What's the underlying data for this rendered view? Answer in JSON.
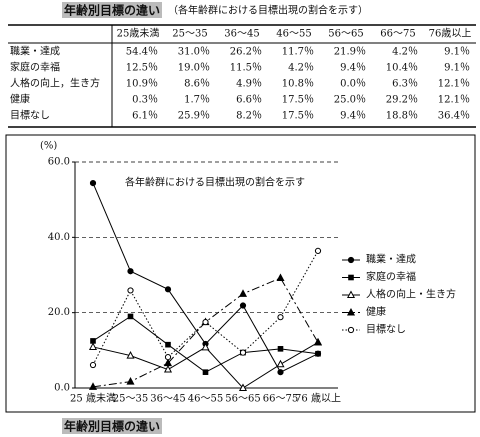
{
  "header": {
    "title": "年齢別目標の違い",
    "subtitle": "（各年齢群における目標出現の割合を示す）"
  },
  "table": {
    "columns": [
      "25歳未満",
      "25～35",
      "36～45",
      "46～55",
      "56～65",
      "66～75",
      "76歳以上"
    ],
    "rows": [
      [
        "職業・達成",
        "54.4％",
        "31.0％",
        "26.2％",
        "11.7％",
        "21.9％",
        "4.2％",
        "9.1％"
      ],
      [
        "家庭の幸福",
        "12.5％",
        "19.0％",
        "11.5％",
        "4.2％",
        "9.4％",
        "10.4％",
        "9.1％"
      ],
      [
        "人格の向上，生き方",
        "10.9％",
        "8.6％",
        "4.9％",
        "10.8％",
        "0.0％",
        "6.3％",
        "12.1％"
      ],
      [
        "健康",
        "0.3％",
        "1.7％",
        "6.6％",
        "17.5％",
        "25.0％",
        "29.2％",
        "12.1％"
      ],
      [
        "目標なし",
        "6.1％",
        "25.9％",
        "8.2％",
        "17.5％",
        "9.4％",
        "18.8％",
        "36.4％"
      ]
    ]
  },
  "chart_data": {
    "type": "line",
    "title": "各年齢群における目標出現の割合を示す",
    "ylabel": "(%)",
    "categories": [
      "25 歳未満",
      "25～35",
      "36～45",
      "46～55",
      "56～65",
      "66～75",
      "76 歳以上"
    ],
    "ylim": [
      0,
      60
    ],
    "yticks": [
      {
        "value": 0,
        "label": "0.0"
      },
      {
        "value": 20,
        "label": "20.0"
      },
      {
        "value": 40,
        "label": "40.0"
      },
      {
        "value": 60,
        "label": "60.0"
      }
    ],
    "grid": true,
    "legend": "right",
    "series": [
      {
        "name": "職業・達成",
        "color": "#000",
        "marker": "filled-circle",
        "line": "solid",
        "values": [
          54.4,
          31.0,
          26.2,
          11.7,
          21.9,
          4.2,
          9.1
        ]
      },
      {
        "name": "家庭の幸福",
        "color": "#000",
        "marker": "filled-square",
        "line": "solid",
        "values": [
          12.5,
          19.0,
          11.5,
          4.2,
          9.4,
          10.4,
          9.1
        ]
      },
      {
        "name": "人格の向上・生き方",
        "color": "#000",
        "marker": "open-triangle",
        "line": "solid",
        "values": [
          10.9,
          8.6,
          4.9,
          10.8,
          0.0,
          6.3,
          12.1
        ]
      },
      {
        "name": "健康",
        "color": "#000",
        "marker": "filled-triangle",
        "line": "dashdot",
        "values": [
          0.3,
          1.7,
          6.6,
          17.5,
          25.0,
          29.2,
          12.1
        ]
      },
      {
        "name": "目標なし",
        "color": "#000",
        "marker": "open-circle",
        "line": "dotted",
        "values": [
          6.1,
          25.9,
          8.2,
          17.5,
          9.4,
          18.8,
          36.4
        ]
      }
    ]
  },
  "footer": {
    "caption": "年齢別目標の違い"
  }
}
